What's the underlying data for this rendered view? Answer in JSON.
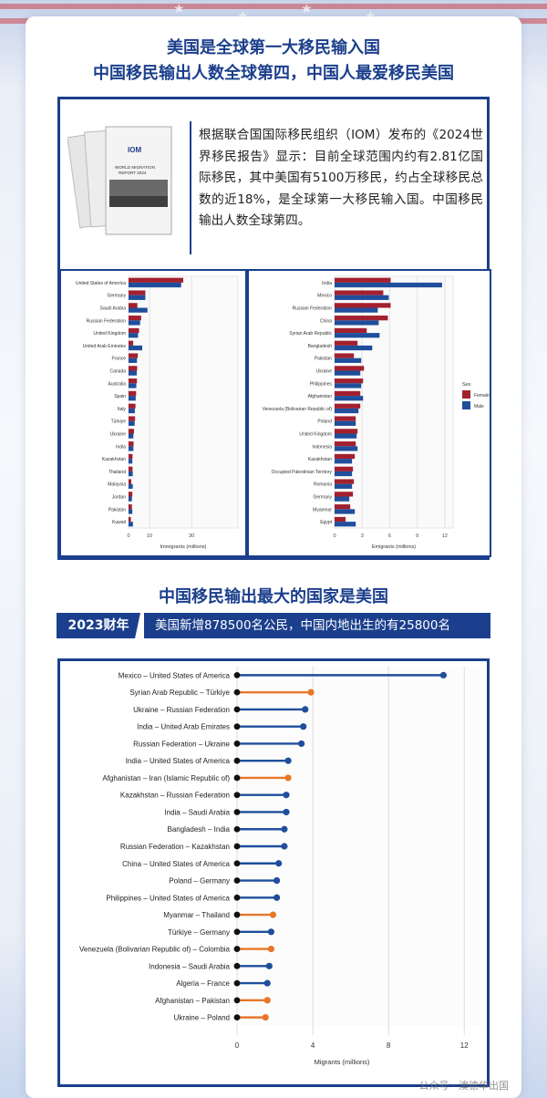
{
  "header": {
    "title_line1": "美国是全球第一大移民输入国",
    "title_line2": "中国移民输出人数全球第四，中国人最爱移民美国"
  },
  "intro": {
    "report_logo": "IOM",
    "report_title": "WORLD MIGRATION REPORT 2024",
    "text": "根据联合国国际移民组织（IOM）发布的《2024世界移民报告》显示：目前全球范围内约有2.81亿国际移民，其中美国有5100万移民，约占全球移民总数的近18%，是全球第一大移民输入国。中国移民输出人数全球第四。"
  },
  "section2": {
    "title": "中国移民输出最大的国家是美国",
    "fiscal_badge": "2023财年",
    "fiscal_text": "美国新增878500名公民，中国内地出生的有25800名"
  },
  "colors": {
    "female": "#a3202e",
    "male": "#1f4e9c",
    "orange": "#e8762a",
    "navy": "#1b3f8c"
  },
  "chart_data": [
    {
      "type": "bar",
      "xlabel": "Immigrants (millions)",
      "xticks": [
        0,
        10,
        30
      ],
      "xlim": [
        0,
        52
      ],
      "categories": [
        "United States of America",
        "Germany",
        "Saudi Arabia",
        "Russian Federation",
        "United Kingdom",
        "United Arab Emirates",
        "France",
        "Canada",
        "Australia",
        "Spain",
        "Italy",
        "Türkiye",
        "Ukraine",
        "India",
        "Kazakhstan",
        "Thailand",
        "Malaysia",
        "Jordan",
        "Pakistan",
        "Kuwait"
      ],
      "series": [
        {
          "name": "Female",
          "values": [
            26.0,
            8.0,
            4.2,
            6.0,
            5.0,
            2.2,
            4.4,
            4.1,
            4.0,
            3.6,
            3.3,
            3.1,
            2.6,
            2.4,
            1.9,
            1.9,
            1.3,
            1.8,
            1.6,
            1.1
          ]
        },
        {
          "name": "Male",
          "values": [
            25.0,
            8.0,
            9.0,
            5.5,
            4.5,
            6.5,
            4.0,
            3.9,
            3.7,
            3.4,
            3.0,
            2.9,
            2.3,
            2.3,
            1.8,
            2.0,
            2.0,
            1.6,
            1.8,
            2.1
          ]
        }
      ]
    },
    {
      "type": "bar",
      "xlabel": "Emigrants (millions)",
      "xticks": [
        0,
        3,
        6,
        9,
        12
      ],
      "xlim": [
        0,
        12.9
      ],
      "legend_title": "Sex",
      "legend_position": "right",
      "categories": [
        "India",
        "Mexico",
        "Russian Federation",
        "China",
        "Syrian Arab Republic",
        "Bangladesh",
        "Pakistan",
        "Ukraine",
        "Philippines",
        "Afghanistan",
        "Venezuela (Bolivarian Republic of)",
        "Poland",
        "United Kingdom",
        "Indonesia",
        "Kazakhstan",
        "Occupied Palestinian Territory",
        "Romania",
        "Germany",
        "Myanmar",
        "Egypt"
      ],
      "series": [
        {
          "name": "Female",
          "values": [
            6.1,
            5.3,
            6.1,
            5.8,
            3.5,
            2.5,
            2.1,
            3.2,
            3.1,
            2.8,
            2.8,
            2.3,
            2.5,
            2.3,
            2.2,
            2.0,
            2.1,
            2.0,
            1.7,
            1.2
          ]
        },
        {
          "name": "Male",
          "values": [
            11.7,
            5.9,
            4.7,
            4.8,
            4.9,
            4.1,
            2.9,
            2.8,
            2.9,
            3.1,
            2.6,
            2.3,
            2.4,
            2.5,
            1.9,
            1.9,
            1.9,
            1.6,
            2.2,
            2.3
          ]
        }
      ]
    },
    {
      "type": "scatter",
      "xlabel": "Migrants (millions)",
      "xticks": [
        0,
        4,
        8,
        12
      ],
      "xlim": [
        0,
        13
      ],
      "categories": [
        "Mexico – United States of America",
        "Syrian Arab Republic – Türkiye",
        "Ukraine – Russian Federation",
        "India – United Arab Emirates",
        "Russian Federation – Ukraine",
        "India – United States of America",
        "Afghanistan – Iran (Islamic Republic of)",
        "Kazakhstan – Russian Federation",
        "India – Saudi Arabia",
        "Bangladesh – India",
        "Russian Federation – Kazakhstan",
        "China – United States of America",
        "Poland – Germany",
        "Philippines – United States of America",
        "Myanmar – Thailand",
        "Türkiye – Germany",
        "Venezuela (Bolivarian Republic of) – Colombia",
        "Indonesia – Saudi Arabia",
        "Algeria – France",
        "Afghanistan – Pakistan",
        "Ukraine – Poland"
      ],
      "values": [
        10.9,
        3.9,
        3.6,
        3.5,
        3.4,
        2.7,
        2.7,
        2.6,
        2.6,
        2.5,
        2.5,
        2.2,
        2.1,
        2.1,
        1.9,
        1.8,
        1.8,
        1.7,
        1.6,
        1.6,
        1.5
      ],
      "point_colors": [
        "#1f4e9c",
        "#e8762a",
        "#1f4e9c",
        "#1f4e9c",
        "#1f4e9c",
        "#1f4e9c",
        "#e8762a",
        "#1f4e9c",
        "#1f4e9c",
        "#1f4e9c",
        "#1f4e9c",
        "#1f4e9c",
        "#1f4e9c",
        "#1f4e9c",
        "#e8762a",
        "#1f4e9c",
        "#e8762a",
        "#1f4e9c",
        "#1f4e9c",
        "#e8762a",
        "#e8762a"
      ]
    }
  ],
  "watermark": "公众号 · 澳德华出国"
}
